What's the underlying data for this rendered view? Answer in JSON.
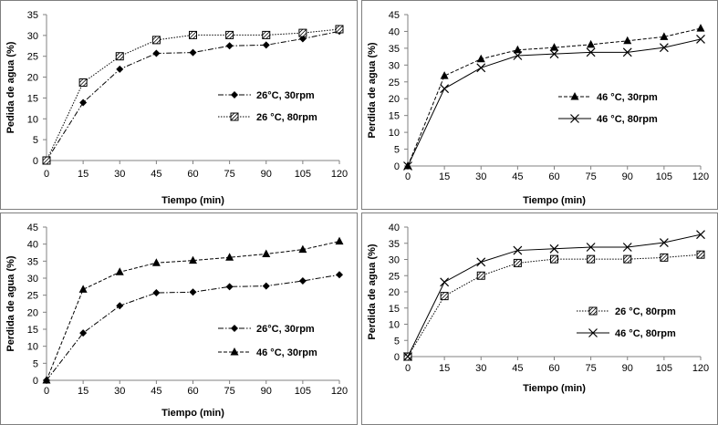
{
  "chart_data": [
    {
      "type": "line",
      "xlabel": "Tiempo (min)",
      "ylabel": "Pedida de agua (%)",
      "x": [
        0,
        15,
        30,
        45,
        60,
        75,
        90,
        105,
        120
      ],
      "xticks": [
        "0",
        "15",
        "30",
        "45",
        "60",
        "75",
        "90",
        "105",
        "120"
      ],
      "ylim": [
        0,
        35
      ],
      "yticks": [
        "0",
        "5",
        "10",
        "15",
        "20",
        "25",
        "30",
        "35"
      ],
      "grid": false,
      "legend_position": "right",
      "series": [
        {
          "name": "26°C, 30rpm",
          "values": [
            0,
            13.9,
            21.9,
            25.7,
            25.9,
            27.5,
            27.7,
            29.2,
            31.0
          ],
          "marker": "diamond",
          "dash": "dashdot",
          "color": "#000000"
        },
        {
          "name": "26 °C, 80rpm",
          "values": [
            0,
            18.7,
            25.0,
            28.9,
            30.1,
            30.1,
            30.1,
            30.6,
            31.5
          ],
          "marker": "hatched-square",
          "dash": "dotted",
          "color": "#000000"
        }
      ]
    },
    {
      "type": "line",
      "xlabel": "Tiempo (min)",
      "ylabel": "Perdida de agua (%)",
      "x": [
        0,
        15,
        30,
        45,
        60,
        75,
        90,
        105,
        120
      ],
      "xticks": [
        "0",
        "15",
        "30",
        "45",
        "60",
        "75",
        "90",
        "105",
        "120"
      ],
      "ylim": [
        0,
        45
      ],
      "yticks": [
        "0",
        "5",
        "10",
        "15",
        "20",
        "25",
        "30",
        "35",
        "40",
        "45"
      ],
      "grid": false,
      "legend_position": "right",
      "series": [
        {
          "name": "46 °C, 30rpm",
          "values": [
            0,
            26.8,
            31.8,
            34.5,
            35.2,
            36.1,
            37.2,
            38.4,
            40.9
          ],
          "marker": "triangle",
          "dash": "dashed",
          "color": "#000000"
        },
        {
          "name": "46 °C, 80rpm",
          "values": [
            0,
            23.0,
            29.2,
            32.8,
            33.3,
            33.8,
            33.8,
            35.2,
            37.7
          ],
          "marker": "x",
          "dash": "solid",
          "color": "#000000"
        }
      ]
    },
    {
      "type": "line",
      "xlabel": "Tiempo (min)",
      "ylabel": "Perdida de agua (%)",
      "x": [
        0,
        15,
        30,
        45,
        60,
        75,
        90,
        105,
        120
      ],
      "xticks": [
        "0",
        "15",
        "30",
        "45",
        "60",
        "75",
        "90",
        "105",
        "120"
      ],
      "ylim": [
        0,
        45
      ],
      "yticks": [
        "0",
        "5",
        "10",
        "15",
        "20",
        "25",
        "30",
        "35",
        "40",
        "45"
      ],
      "grid": false,
      "legend_position": "right",
      "series": [
        {
          "name": "26°C, 30rpm",
          "values": [
            0,
            13.9,
            21.9,
            25.7,
            25.9,
            27.5,
            27.7,
            29.2,
            31.0
          ],
          "marker": "diamond",
          "dash": "dashdot",
          "color": "#000000"
        },
        {
          "name": "46 °C, 30rpm",
          "values": [
            0,
            26.7,
            31.8,
            34.5,
            35.2,
            36.1,
            37.1,
            38.4,
            40.8
          ],
          "marker": "triangle",
          "dash": "dashed",
          "color": "#000000"
        }
      ]
    },
    {
      "type": "line",
      "xlabel": "Tiempo (min)",
      "ylabel": "Perdida de agua (%)",
      "x": [
        0,
        15,
        30,
        45,
        60,
        75,
        90,
        105,
        120
      ],
      "xticks": [
        "0",
        "15",
        "30",
        "45",
        "60",
        "75",
        "90",
        "105",
        "120"
      ],
      "ylim": [
        0,
        40
      ],
      "yticks": [
        "0",
        "5",
        "10",
        "15",
        "20",
        "25",
        "30",
        "35",
        "40"
      ],
      "grid": false,
      "legend_position": "right",
      "series": [
        {
          "name": "26 °C, 80rpm",
          "values": [
            0,
            18.7,
            25.0,
            28.9,
            30.1,
            30.1,
            30.1,
            30.6,
            31.5
          ],
          "marker": "hatched-square",
          "dash": "dotted",
          "color": "#000000"
        },
        {
          "name": "46 °C, 80rpm",
          "values": [
            0,
            23.0,
            29.2,
            32.8,
            33.3,
            33.8,
            33.8,
            35.2,
            37.7
          ],
          "marker": "x",
          "dash": "solid",
          "color": "#000000"
        }
      ]
    }
  ]
}
